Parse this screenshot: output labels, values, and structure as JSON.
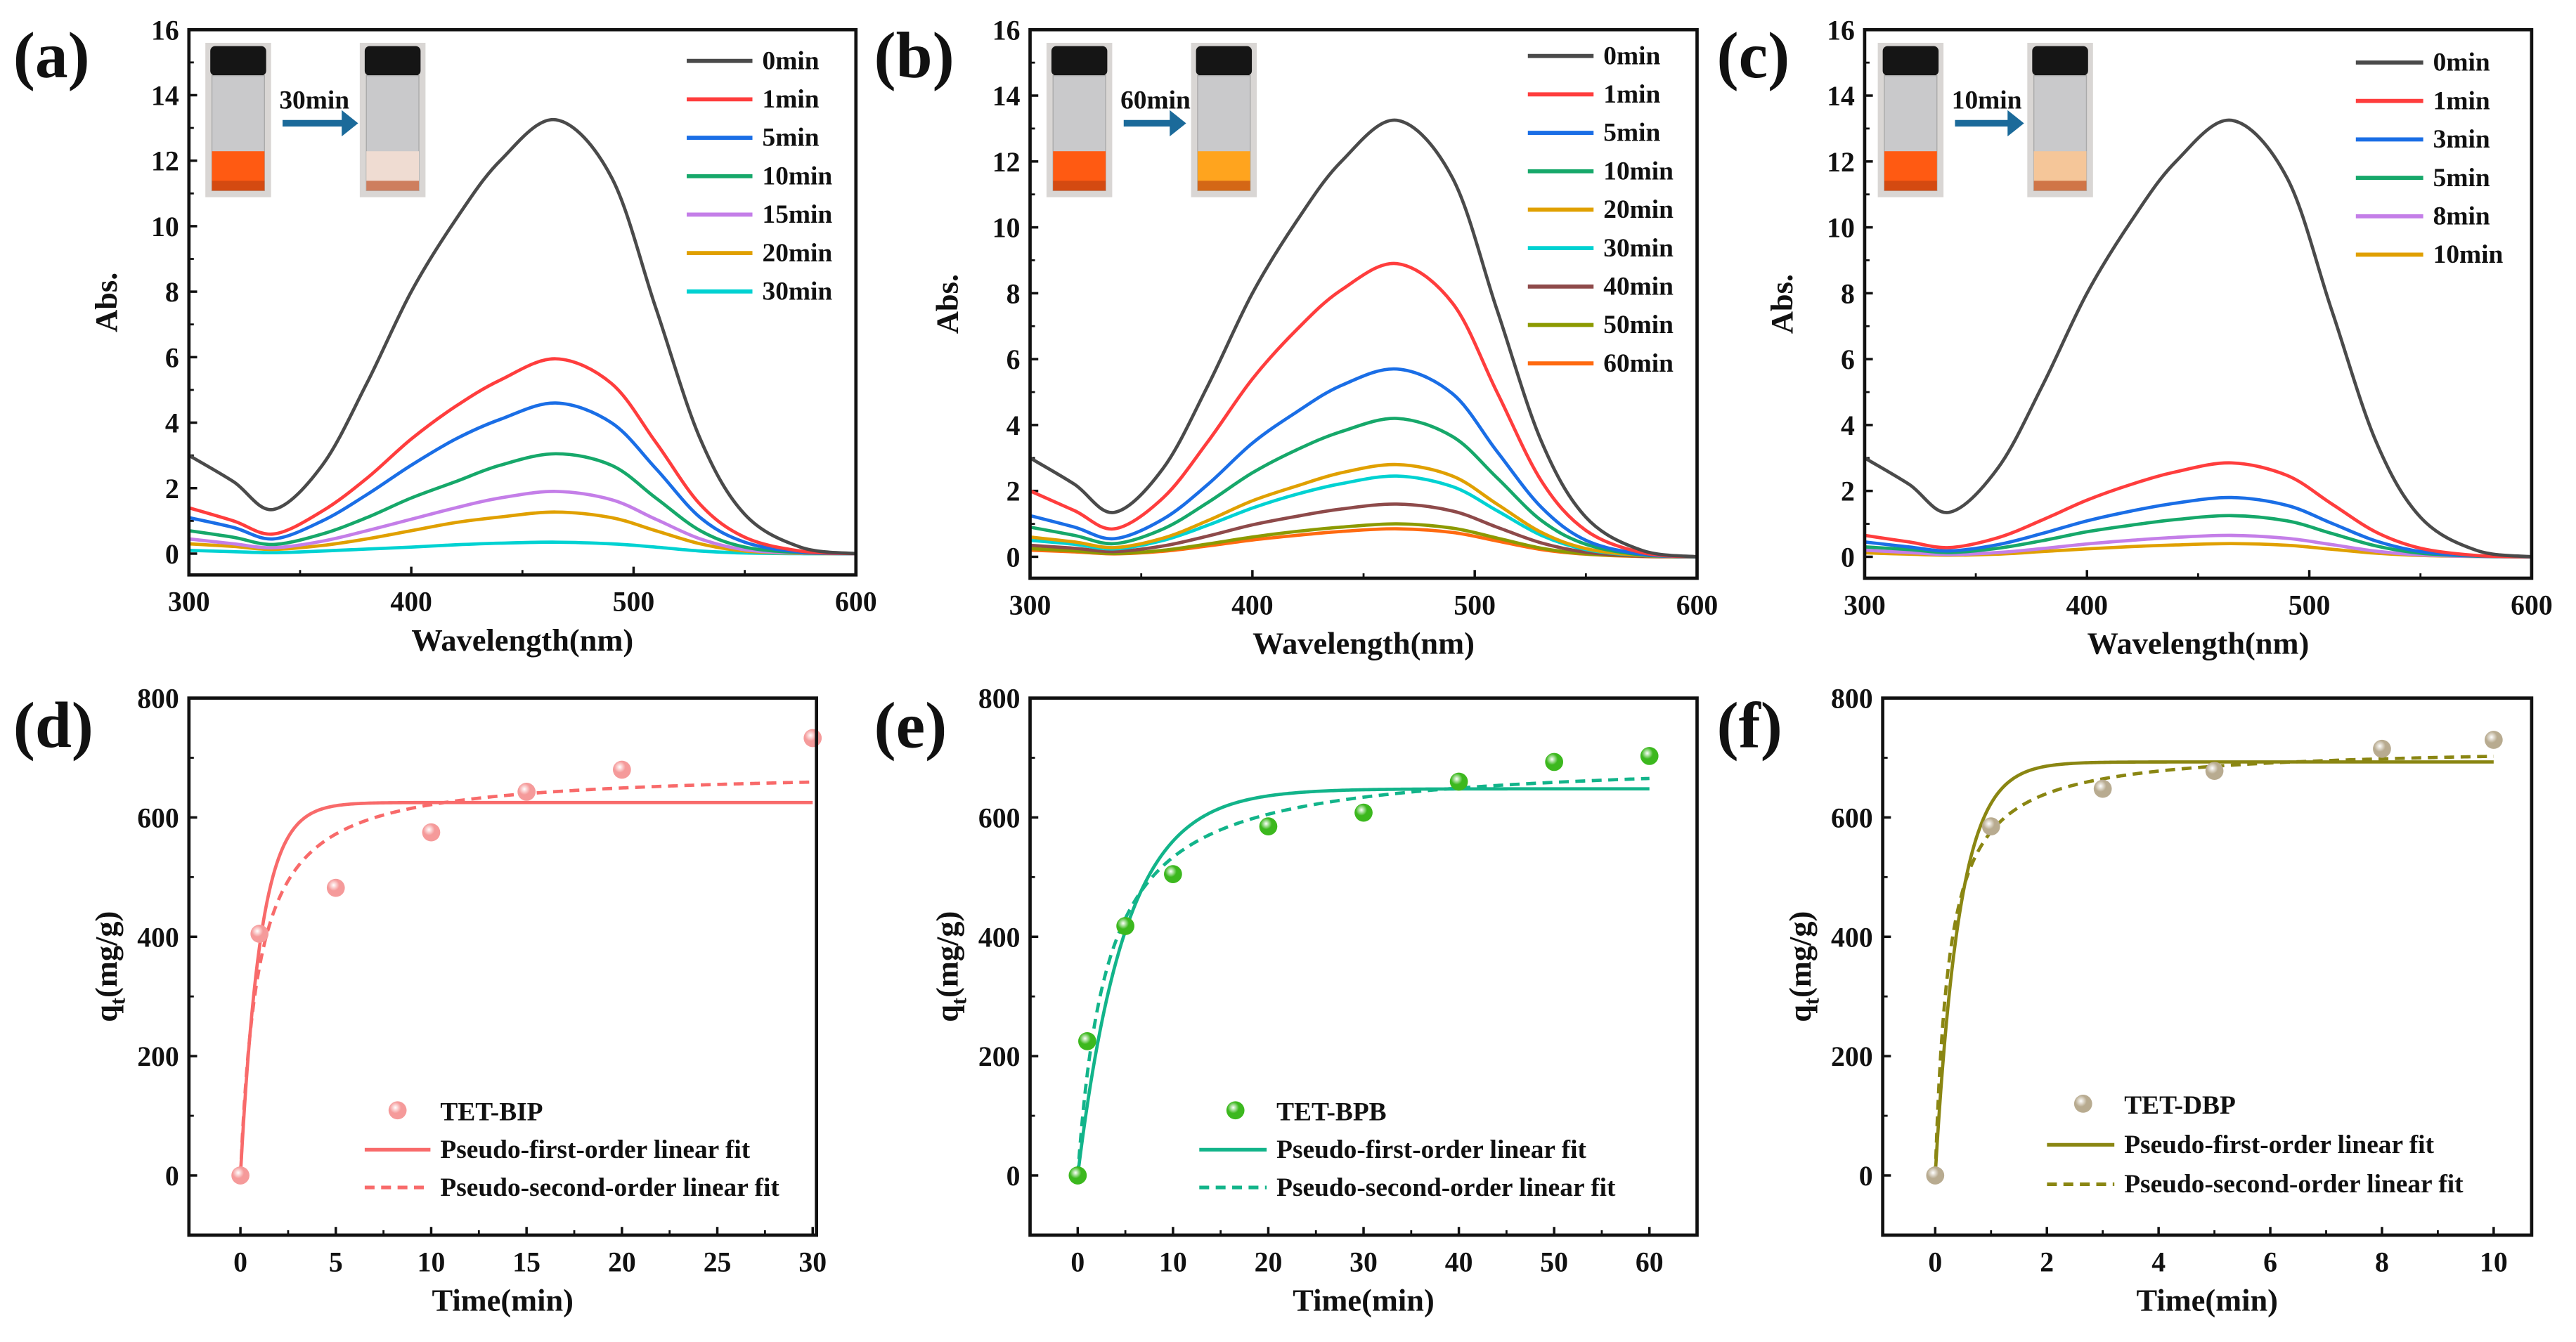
{
  "chart_data": [
    {
      "panel": "(a)",
      "type": "line",
      "xlabel": "Wavelength(nm)",
      "ylabel": "Abs.",
      "xlim": [
        300,
        600
      ],
      "ylim": [
        -0.65,
        16
      ],
      "xticks": [
        300,
        400,
        500,
        600
      ],
      "yticks": [
        0,
        2,
        4,
        6,
        8,
        10,
        12,
        14,
        16
      ],
      "inset_label": "30min",
      "inset_colors": {
        "before": "#ff5a12",
        "after": "#efdcd2"
      },
      "x": [
        300,
        320,
        338,
        360,
        380,
        400,
        420,
        440,
        465,
        490,
        510,
        530,
        550,
        575,
        600
      ],
      "series": [
        {
          "name": "0min",
          "color": "#4a4a4a",
          "values": [
            3.0,
            2.2,
            1.35,
            2.7,
            5.2,
            8.0,
            10.2,
            12.0,
            13.25,
            11.5,
            7.5,
            3.5,
            1.2,
            0.2,
            0
          ]
        },
        {
          "name": "1min",
          "color": "#ff3d3d",
          "values": [
            1.4,
            1.0,
            0.6,
            1.3,
            2.3,
            3.5,
            4.5,
            5.3,
            5.95,
            5.2,
            3.4,
            1.5,
            0.5,
            0.08,
            0
          ]
        },
        {
          "name": "5min",
          "color": "#1a6ee6",
          "values": [
            1.1,
            0.8,
            0.45,
            1.0,
            1.8,
            2.7,
            3.5,
            4.1,
            4.6,
            4.0,
            2.6,
            1.1,
            0.35,
            0.05,
            0
          ]
        },
        {
          "name": "10min",
          "color": "#16a86a",
          "values": [
            0.7,
            0.5,
            0.28,
            0.6,
            1.1,
            1.7,
            2.2,
            2.7,
            3.05,
            2.7,
            1.7,
            0.7,
            0.2,
            0.03,
            0
          ]
        },
        {
          "name": "15min",
          "color": "#c47ee8",
          "values": [
            0.45,
            0.3,
            0.18,
            0.38,
            0.7,
            1.05,
            1.4,
            1.7,
            1.9,
            1.65,
            1.05,
            0.45,
            0.12,
            0.02,
            0
          ]
        },
        {
          "name": "20min",
          "color": "#e0a000",
          "values": [
            0.3,
            0.22,
            0.13,
            0.25,
            0.45,
            0.7,
            0.95,
            1.12,
            1.27,
            1.1,
            0.7,
            0.3,
            0.08,
            0.01,
            0
          ]
        },
        {
          "name": "30min",
          "color": "#00d2d2",
          "values": [
            0.1,
            0.06,
            0.03,
            0.08,
            0.14,
            0.2,
            0.27,
            0.32,
            0.35,
            0.3,
            0.2,
            0.08,
            0.02,
            0,
            0
          ]
        }
      ]
    },
    {
      "panel": "(b)",
      "type": "line",
      "xlabel": "Wavelength(nm)",
      "ylabel": "Abs.",
      "xlim": [
        300,
        600
      ],
      "ylim": [
        -0.65,
        16
      ],
      "xticks": [
        300,
        400,
        500,
        600
      ],
      "yticks": [
        0,
        2,
        4,
        6,
        8,
        10,
        12,
        14,
        16
      ],
      "inset_label": "60min",
      "inset_colors": {
        "before": "#ff5a12",
        "after": "#ffa41e"
      },
      "x": [
        300,
        320,
        338,
        360,
        380,
        400,
        420,
        440,
        465,
        490,
        510,
        530,
        550,
        575,
        600
      ],
      "series": [
        {
          "name": "0min",
          "color": "#4a4a4a",
          "values": [
            3.0,
            2.2,
            1.35,
            2.7,
            5.2,
            8.0,
            10.2,
            12.0,
            13.25,
            11.5,
            7.5,
            3.5,
            1.2,
            0.2,
            0
          ]
        },
        {
          "name": "1min",
          "color": "#ff3d3d",
          "values": [
            2.0,
            1.4,
            0.85,
            1.8,
            3.5,
            5.4,
            6.9,
            8.1,
            8.9,
            7.7,
            5.0,
            2.3,
            0.8,
            0.13,
            0
          ]
        },
        {
          "name": "5min",
          "color": "#1a6ee6",
          "values": [
            1.25,
            0.9,
            0.55,
            1.15,
            2.2,
            3.45,
            4.4,
            5.2,
            5.7,
            4.95,
            3.2,
            1.5,
            0.5,
            0.08,
            0
          ]
        },
        {
          "name": "10min",
          "color": "#16a86a",
          "values": [
            0.9,
            0.65,
            0.4,
            0.85,
            1.65,
            2.55,
            3.25,
            3.8,
            4.2,
            3.65,
            2.4,
            1.1,
            0.38,
            0.06,
            0
          ]
        },
        {
          "name": "20min",
          "color": "#e0a000",
          "values": [
            0.6,
            0.45,
            0.28,
            0.57,
            1.1,
            1.7,
            2.15,
            2.55,
            2.8,
            2.45,
            1.6,
            0.74,
            0.25,
            0.04,
            0
          ]
        },
        {
          "name": "30min",
          "color": "#00d2d2",
          "values": [
            0.5,
            0.38,
            0.24,
            0.5,
            0.96,
            1.48,
            1.9,
            2.22,
            2.45,
            2.13,
            1.4,
            0.65,
            0.22,
            0.04,
            0
          ]
        },
        {
          "name": "40min",
          "color": "#8e4a4a",
          "values": [
            0.35,
            0.26,
            0.16,
            0.33,
            0.63,
            0.97,
            1.23,
            1.45,
            1.6,
            1.39,
            0.9,
            0.42,
            0.14,
            0.02,
            0
          ]
        },
        {
          "name": "50min",
          "color": "#8c9a00",
          "values": [
            0.25,
            0.18,
            0.1,
            0.2,
            0.39,
            0.6,
            0.77,
            0.9,
            1.0,
            0.87,
            0.57,
            0.26,
            0.09,
            0.02,
            0
          ]
        },
        {
          "name": "60min",
          "color": "#ff6a10",
          "values": [
            0.2,
            0.15,
            0.09,
            0.17,
            0.33,
            0.51,
            0.65,
            0.77,
            0.85,
            0.74,
            0.48,
            0.22,
            0.08,
            0.01,
            0
          ]
        }
      ]
    },
    {
      "panel": "(c)",
      "type": "line",
      "xlabel": "Wavelength(nm)",
      "ylabel": "Abs.",
      "xlim": [
        300,
        600
      ],
      "ylim": [
        -0.65,
        16
      ],
      "xticks": [
        300,
        400,
        500,
        600
      ],
      "yticks": [
        0,
        2,
        4,
        6,
        8,
        10,
        12,
        14,
        16
      ],
      "inset_label": "10min",
      "inset_colors": {
        "before": "#ff5a12",
        "after": "#f5c699"
      },
      "x": [
        300,
        320,
        338,
        360,
        380,
        400,
        420,
        440,
        465,
        490,
        510,
        530,
        550,
        575,
        600
      ],
      "series": [
        {
          "name": "0min",
          "color": "#4a4a4a",
          "values": [
            3.0,
            2.2,
            1.35,
            2.7,
            5.2,
            8.0,
            10.2,
            12.0,
            13.25,
            11.5,
            7.5,
            3.5,
            1.2,
            0.2,
            0
          ]
        },
        {
          "name": "1min",
          "color": "#ff3d3d",
          "values": [
            0.65,
            0.45,
            0.28,
            0.58,
            1.12,
            1.72,
            2.2,
            2.58,
            2.85,
            2.47,
            1.61,
            0.75,
            0.26,
            0.04,
            0
          ]
        },
        {
          "name": "3min",
          "color": "#1a6ee6",
          "values": [
            0.45,
            0.3,
            0.18,
            0.37,
            0.71,
            1.09,
            1.39,
            1.63,
            1.8,
            1.56,
            1.02,
            0.48,
            0.16,
            0.03,
            0
          ]
        },
        {
          "name": "5min",
          "color": "#16a86a",
          "values": [
            0.3,
            0.22,
            0.13,
            0.26,
            0.49,
            0.76,
            0.96,
            1.13,
            1.25,
            1.09,
            0.71,
            0.33,
            0.11,
            0.02,
            0
          ]
        },
        {
          "name": "8min",
          "color": "#c47ee8",
          "values": [
            0.2,
            0.13,
            0.07,
            0.13,
            0.25,
            0.39,
            0.5,
            0.59,
            0.65,
            0.56,
            0.37,
            0.17,
            0.06,
            0.01,
            0
          ]
        },
        {
          "name": "10min",
          "color": "#e0a000",
          "values": [
            0.12,
            0.08,
            0.05,
            0.08,
            0.16,
            0.24,
            0.31,
            0.36,
            0.4,
            0.35,
            0.23,
            0.11,
            0.04,
            0.01,
            0
          ]
        }
      ]
    },
    {
      "panel": "(d)",
      "type": "scatter",
      "xlabel": "Time(min)",
      "ylabel": "q",
      "ylabel_sub": "t",
      "ylabel_unit": "(mg/g)",
      "xlim": [
        -2.7,
        30.2
      ],
      "ylim": [
        -100,
        800
      ],
      "xticks": [
        0,
        5,
        10,
        15,
        20,
        25,
        30
      ],
      "yticks": [
        0,
        200,
        400,
        600,
        800
      ],
      "points": {
        "name": "TET-BIP",
        "color": "#f59a9a",
        "x": [
          0,
          1,
          5,
          10,
          15,
          20,
          30
        ],
        "y": [
          0,
          405,
          482,
          575,
          643,
          680,
          733
        ]
      },
      "fits": [
        {
          "name": "Pseudo-first-order linear fit",
          "model": "pfo",
          "qe": 625,
          "k": 0.95,
          "color": "#f86a6a",
          "dash": false
        },
        {
          "name": "Pseudo-second-order linear fit",
          "model": "pso",
          "qe": 680,
          "k": 0.00156,
          "color": "#f86a6a",
          "dash": true
        }
      ]
    },
    {
      "panel": "(e)",
      "type": "scatter",
      "xlabel": "Time(min)",
      "ylabel": "q",
      "ylabel_sub": "t",
      "ylabel_unit": "(mg/g)",
      "xlim": [
        -5,
        65
      ],
      "ylim": [
        -100,
        800
      ],
      "xticks": [
        0,
        10,
        20,
        30,
        40,
        50,
        60
      ],
      "yticks": [
        0,
        200,
        400,
        600,
        800
      ],
      "points": {
        "name": "TET-BPB",
        "color": "#3cb81e",
        "x": [
          0,
          1,
          5,
          10,
          20,
          30,
          40,
          50,
          60
        ],
        "y": [
          0,
          225,
          418,
          505,
          585,
          608,
          660,
          693,
          703
        ]
      },
      "fits": [
        {
          "name": "Pseudo-first-order linear fit",
          "model": "pfo",
          "qe": 648,
          "k": 0.2,
          "color": "#12b48a",
          "dash": false
        },
        {
          "name": "Pseudo-second-order linear fit",
          "model": "pso",
          "qe": 700,
          "k": 0.000457,
          "color": "#12b48a",
          "dash": true
        }
      ]
    },
    {
      "panel": "(f)",
      "type": "scatter",
      "xlabel": "Time(min)",
      "ylabel": "q",
      "ylabel_sub": "t",
      "ylabel_unit": "(mg/g)",
      "xlim": [
        -0.94,
        10.68
      ],
      "ylim": [
        -100,
        800
      ],
      "xticks": [
        0,
        2,
        4,
        6,
        8,
        10
      ],
      "yticks": [
        0,
        200,
        400,
        600,
        800
      ],
      "points": {
        "name": "TET-DBP",
        "color": "#b8ab90",
        "x": [
          0,
          1,
          3,
          5,
          8,
          10
        ],
        "y": [
          0,
          585,
          648,
          678,
          715,
          730
        ]
      },
      "fits": [
        {
          "name": "Pseudo-first-order linear fit",
          "model": "pfo",
          "qe": 693,
          "k": 2.3,
          "color": "#8a8612",
          "dash": false
        },
        {
          "name": "Pseudo-second-order linear fit",
          "model": "pso",
          "qe": 720,
          "k": 0.00556,
          "color": "#8a8612",
          "dash": true
        }
      ]
    }
  ]
}
